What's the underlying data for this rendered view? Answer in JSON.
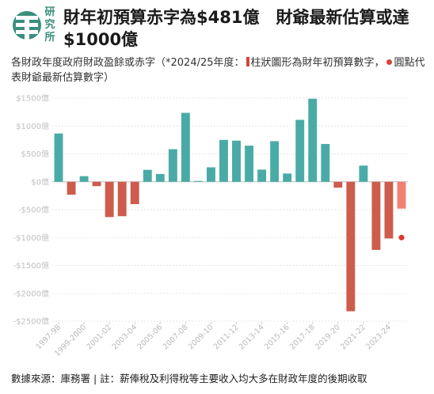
{
  "header": {
    "logo_icon": "library-research-logo-icon",
    "logo_text": "研究所",
    "title": "財年初預算赤字為$481億　財爺最新估算或達$1000億"
  },
  "subtitle": {
    "part1": "各財政年度政府財政盈餘或赤字（*2024/25年度：",
    "part2": "柱狀圖形為財年初預算數字，",
    "part3": "圓點代表財爺最新估算數字）"
  },
  "footer": "數據來源：庫務署 | 註：薪俸稅及利得稅等主要收入均大多在財政年度的後期收取",
  "chart_data": {
    "type": "bar",
    "title": "財年初預算赤字為$481億　財爺最新估算或達$1000億",
    "ylabel": "",
    "xlabel": "",
    "ylim": [
      -2500,
      1500
    ],
    "yticks": [
      1500,
      1000,
      500,
      0,
      -500,
      -1000,
      -1500,
      -2000,
      -2500
    ],
    "ytick_labels": [
      "$1500億",
      "$1000億",
      "$500億",
      "$0億",
      "-$500億",
      "-$1000億",
      "-$1500億",
      "-$2000億",
      "-$2500億"
    ],
    "categories": [
      "1997-98",
      "1998-99",
      "1999-2000",
      "2000-01",
      "2001-02",
      "2002-03",
      "2003-04",
      "2004-05",
      "2005-06",
      "2006-07",
      "2007-08",
      "2008-09",
      "2009-10",
      "2010-11",
      "2011-12",
      "2012-13",
      "2013-14",
      "2014-15",
      "2015-16",
      "2016-17",
      "2017-18",
      "2018-19",
      "2019-20",
      "2020-21",
      "2021-22",
      "2022-23",
      "2023-24",
      "2024-25"
    ],
    "x_tick_labels_shown": [
      "1997-98",
      "1999-2000",
      "2001-02",
      "2003-04",
      "2005-06",
      "2007-08",
      "2009-10",
      "2011-12",
      "2013-14",
      "2015-16",
      "2017-18",
      "2019-20",
      "2021-22",
      "2023-24"
    ],
    "values": [
      866,
      -232,
      100,
      -78,
      -633,
      -617,
      -401,
      214,
      140,
      584,
      1236,
      15,
      259,
      751,
      737,
      648,
      218,
      728,
      148,
      1110,
      1489,
      678,
      -106,
      -2322,
      290,
      -1222,
      -1017,
      -481
    ],
    "estimate": {
      "category": "2024-25",
      "value": -1000
    },
    "colors": {
      "surplus": "#4aaba6",
      "deficit": "#cd5c4c",
      "budget_2024": "#f08070",
      "estimate_dot": "#e0352b"
    },
    "grid": true
  }
}
